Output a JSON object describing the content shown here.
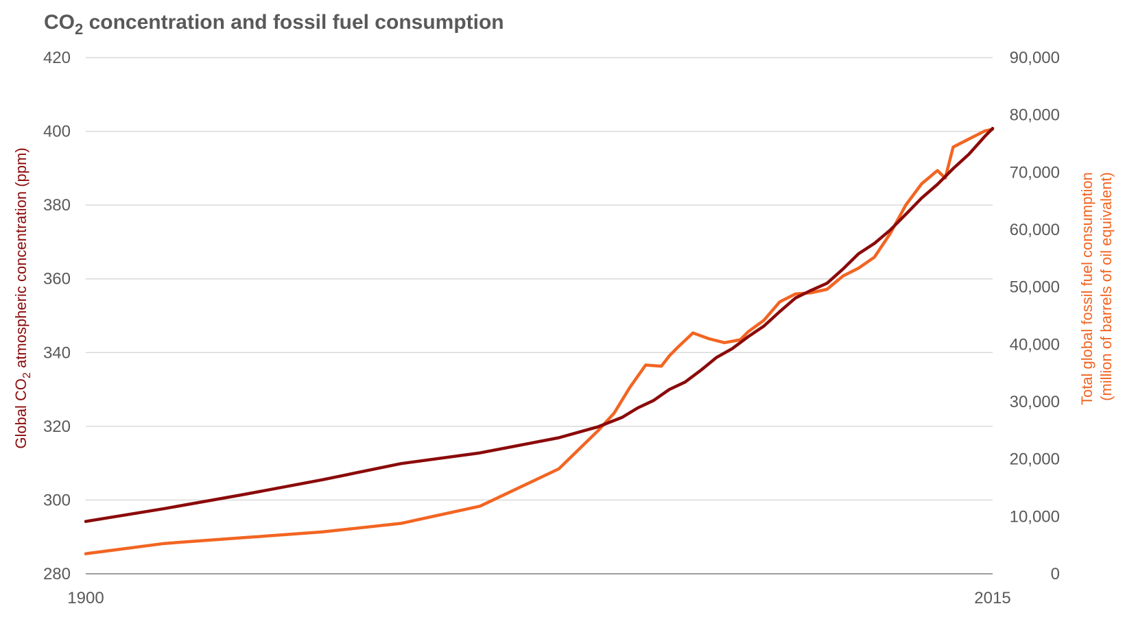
{
  "chart_data": {
    "type": "line",
    "title_prefix": "CO",
    "title_sub": "2",
    "title_suffix": " concentration and fossil fuel consumption",
    "x_ticks": [
      "1900",
      "2015"
    ],
    "xlim": [
      1900,
      2015
    ],
    "y_left": {
      "label_prefix": "Global CO",
      "label_sub": "2",
      "label_suffix": " atmospheric concentration (ppm)",
      "ticks": [
        "280",
        "300",
        "320",
        "340",
        "360",
        "380",
        "400",
        "420"
      ],
      "tick_values": [
        280,
        300,
        320,
        340,
        360,
        380,
        400,
        420
      ],
      "ylim": [
        280,
        420
      ],
      "color": "#8b0a0a"
    },
    "y_right": {
      "label_line1": "Total global fossil fuel consumption",
      "label_line2": "(million of barrels of oil equivalent)",
      "ticks": [
        "0",
        "10,000",
        "20,000",
        "30,000",
        "40,000",
        "50,000",
        "60,000",
        "70,000",
        "80,000",
        "90,000"
      ],
      "tick_values": [
        0,
        10000,
        20000,
        30000,
        40000,
        50000,
        60000,
        70000,
        80000,
        90000
      ],
      "ylim": [
        0,
        90000
      ],
      "color": "#f26522"
    },
    "series": [
      {
        "name": "Global CO2 atmospheric concentration",
        "axis": "left",
        "color": "#8b0a0a",
        "x": [
          1900,
          1910,
          1920,
          1930,
          1940,
          1950,
          1960,
          1965,
          1968,
          1970,
          1972,
          1974,
          1976,
          1978,
          1980,
          1982,
          1984,
          1986,
          1988,
          1990,
          1992,
          1994,
          1996,
          1998,
          2000,
          2002,
          2004,
          2006,
          2008,
          2010,
          2012,
          2014,
          2015
        ],
        "values": [
          294.2,
          297.7,
          301.5,
          305.5,
          309.9,
          312.8,
          316.9,
          319.9,
          322.4,
          325.0,
          327.0,
          330.0,
          332.0,
          335.2,
          338.7,
          341.1,
          344.3,
          347.2,
          351.1,
          354.8,
          356.9,
          358.8,
          362.6,
          366.8,
          369.6,
          373.2,
          377.5,
          381.9,
          385.6,
          389.9,
          393.8,
          398.6,
          400.8
        ]
      },
      {
        "name": "Total global fossil fuel consumption",
        "axis": "right",
        "color": "#f26522",
        "x": [
          1900,
          1910,
          1920,
          1930,
          1940,
          1950,
          1960,
          1965,
          1967,
          1969,
          1971,
          1973,
          1974,
          1975,
          1977,
          1979,
          1981,
          1983,
          1984,
          1986,
          1988,
          1990,
          1992,
          1994,
          1996,
          1998,
          2000,
          2002,
          2004,
          2006,
          2008,
          2009,
          2010,
          2012,
          2014,
          2015
        ],
        "values": [
          3500,
          5300,
          6300,
          7300,
          8800,
          11800,
          18300,
          25000,
          28000,
          32500,
          36400,
          36200,
          38000,
          39400,
          42000,
          41000,
          40300,
          40800,
          42200,
          44200,
          47400,
          48800,
          49000,
          49600,
          51900,
          53300,
          55200,
          59300,
          64300,
          68000,
          70300,
          69000,
          74400,
          75800,
          77200,
          77500
        ]
      }
    ]
  }
}
